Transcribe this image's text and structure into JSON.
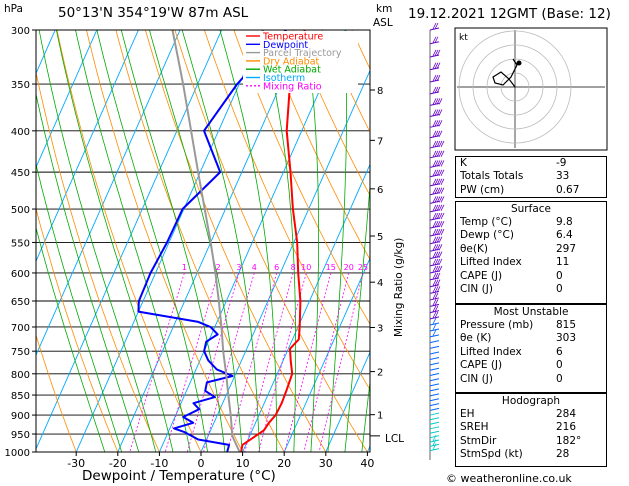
{
  "header": {
    "pressure_unit": "hPa",
    "location": "50°13'N  354°19'W  87m  ASL",
    "km_label": "km",
    "asl_label": "ASL",
    "datetime": "19.12.2021  12GMT  (Base: 12)"
  },
  "legend": [
    {
      "label": "Temperature",
      "color": "#ff0000",
      "dash": ""
    },
    {
      "label": "Dewpoint",
      "color": "#0000ff",
      "dash": ""
    },
    {
      "label": "Parcel Trajectory",
      "color": "#999999",
      "dash": ""
    },
    {
      "label": "Dry Adiabat",
      "color": "#ff8c00",
      "dash": ""
    },
    {
      "label": "Wet Adiabat",
      "color": "#00aa00",
      "dash": ""
    },
    {
      "label": "Isotherm",
      "color": "#00aaff",
      "dash": ""
    },
    {
      "label": "Mixing Ratio",
      "color": "#ff00ff",
      "dash": "2,2"
    }
  ],
  "axes": {
    "xlabel": "Dewpoint / Temperature (°C)",
    "mixing_ratio_label": "Mixing Ratio (g/kg)",
    "lcl_label": "LCL",
    "mixing_ratio_values": [
      "1",
      "2",
      "3",
      "4",
      "6",
      "8",
      "10",
      "15",
      "20",
      "25"
    ]
  },
  "footer": {
    "copyright": "© weatheronline.co.uk"
  },
  "hodograph": {
    "label": "kt"
  },
  "indices": [
    {
      "label": "K",
      "value": "-9"
    },
    {
      "label": "Totals Totals",
      "value": "33"
    },
    {
      "label": "PW (cm)",
      "value": "0.67"
    }
  ],
  "surface": {
    "title": "Surface",
    "rows": [
      {
        "label": "Temp (°C)",
        "value": "9.8"
      },
      {
        "label": "Dewp (°C)",
        "value": "6.4"
      },
      {
        "label": "θe(K)",
        "value": "297"
      },
      {
        "label": "Lifted Index",
        "value": "11"
      },
      {
        "label": "CAPE (J)",
        "value": "0"
      },
      {
        "label": "CIN (J)",
        "value": "0"
      }
    ]
  },
  "most_unstable": {
    "title": "Most Unstable",
    "rows": [
      {
        "label": "Pressure (mb)",
        "value": "815"
      },
      {
        "label": "θe (K)",
        "value": "303"
      },
      {
        "label": "Lifted Index",
        "value": "6"
      },
      {
        "label": "CAPE (J)",
        "value": "0"
      },
      {
        "label": "CIN (J)",
        "value": "0"
      }
    ]
  },
  "hodograph_table": {
    "title": "Hodograph",
    "rows": [
      {
        "label": "EH",
        "value": "284"
      },
      {
        "label": "SREH",
        "value": "216"
      },
      {
        "label": "StmDir",
        "value": "182°"
      },
      {
        "label": "StmSpd (kt)",
        "value": "28"
      }
    ]
  },
  "chart_data": {
    "type": "line",
    "title": "",
    "xlabel": "Dewpoint / Temperature (°C)",
    "ylabel": "hPa",
    "x_ticks": [
      -30,
      -20,
      -10,
      0,
      10,
      20,
      30,
      40
    ],
    "pressure_levels": [
      300,
      350,
      400,
      450,
      500,
      550,
      600,
      650,
      700,
      750,
      800,
      850,
      900,
      950,
      1000
    ],
    "km_ticks": [
      {
        "km": 8,
        "p": 356
      },
      {
        "km": 7,
        "p": 411
      },
      {
        "km": 6,
        "p": 472
      },
      {
        "km": 5,
        "p": 540
      },
      {
        "km": 4,
        "p": 616
      },
      {
        "km": 3,
        "p": 701
      },
      {
        "km": 2,
        "p": 795
      },
      {
        "km": 1,
        "p": 899
      }
    ],
    "lcl_pressure": 955,
    "series": [
      {
        "name": "Temperature",
        "color": "#ff0000",
        "points": [
          [
            1007,
            9.8
          ],
          [
            980,
            9.2
          ],
          [
            960,
            11.0
          ],
          [
            940,
            12.8
          ],
          [
            920,
            13.2
          ],
          [
            900,
            14.0
          ],
          [
            870,
            14.2
          ],
          [
            840,
            14.0
          ],
          [
            800,
            13.6
          ],
          [
            770,
            11.8
          ],
          [
            745,
            10.4
          ],
          [
            725,
            11.5
          ],
          [
            700,
            10.4
          ],
          [
            650,
            7.8
          ],
          [
            600,
            4.3
          ],
          [
            550,
            0.8
          ],
          [
            500,
            -3.8
          ],
          [
            450,
            -8.3
          ],
          [
            400,
            -13.6
          ],
          [
            350,
            -17.8
          ],
          [
            300,
            -20.0
          ]
        ]
      },
      {
        "name": "Dewpoint",
        "color": "#0000ff",
        "points": [
          [
            1007,
            6.4
          ],
          [
            980,
            6.0
          ],
          [
            965,
            -2.0
          ],
          [
            945,
            -6.0
          ],
          [
            935,
            -9.0
          ],
          [
            920,
            -5.0
          ],
          [
            905,
            -8.0
          ],
          [
            885,
            -5.0
          ],
          [
            870,
            -7.0
          ],
          [
            855,
            -2.5
          ],
          [
            840,
            -5.5
          ],
          [
            820,
            -6.0
          ],
          [
            805,
            -0.5
          ],
          [
            790,
            -5.0
          ],
          [
            770,
            -8.0
          ],
          [
            750,
            -10.0
          ],
          [
            730,
            -10.5
          ],
          [
            715,
            -8.5
          ],
          [
            700,
            -11.0
          ],
          [
            690,
            -14.5
          ],
          [
            670,
            -30.0
          ],
          [
            650,
            -31.0
          ],
          [
            600,
            -31.2
          ],
          [
            550,
            -30.5
          ],
          [
            500,
            -30.3
          ],
          [
            450,
            -25.2
          ],
          [
            400,
            -33.5
          ],
          [
            350,
            -30.5
          ],
          [
            300,
            -24.5
          ]
        ]
      },
      {
        "name": "Parcel Trajectory",
        "color": "#999999",
        "points": [
          [
            1007,
            9.8
          ],
          [
            955,
            5.8
          ],
          [
            900,
            3.2
          ],
          [
            850,
            0.5
          ],
          [
            800,
            -2.3
          ],
          [
            750,
            -5.4
          ],
          [
            700,
            -8.4
          ],
          [
            650,
            -11.8
          ],
          [
            600,
            -15.6
          ],
          [
            550,
            -20.0
          ],
          [
            500,
            -25.0
          ],
          [
            450,
            -30.5
          ],
          [
            400,
            -36.6
          ],
          [
            350,
            -43.5
          ],
          [
            300,
            -51.8
          ]
        ]
      }
    ]
  }
}
